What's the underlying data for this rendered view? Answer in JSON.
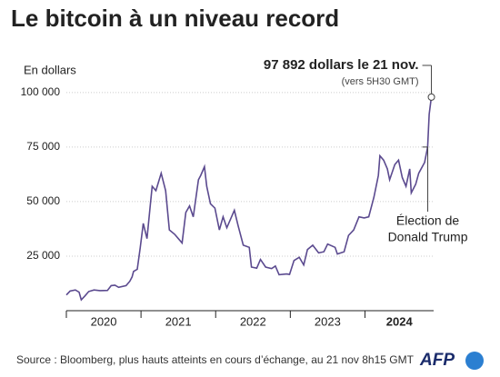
{
  "chart_data": {
    "type": "line",
    "title": "Le bitcoin à un niveau record",
    "y_label": "En  dollars",
    "x": [
      2020.0,
      2020.05,
      2020.12,
      2020.17,
      2020.2,
      2020.25,
      2020.3,
      2020.37,
      2020.45,
      2020.55,
      2020.6,
      2020.65,
      2020.7,
      2020.8,
      2020.85,
      2020.88,
      2020.9,
      2020.95,
      2020.99,
      2021.03,
      2021.08,
      2021.12,
      2021.15,
      2021.2,
      2021.27,
      2021.33,
      2021.38,
      2021.45,
      2021.5,
      2021.55,
      2021.6,
      2021.65,
      2021.7,
      2021.77,
      2021.8,
      2021.85,
      2021.88,
      2021.93,
      2021.99,
      2022.05,
      2022.1,
      2022.15,
      2022.25,
      2022.3,
      2022.37,
      2022.45,
      2022.48,
      2022.55,
      2022.6,
      2022.67,
      2022.75,
      2022.8,
      2022.85,
      2022.95,
      2022.99,
      2023.05,
      2023.12,
      2023.18,
      2023.23,
      2023.3,
      2023.38,
      2023.45,
      2023.5,
      2023.6,
      2023.63,
      2023.72,
      2023.78,
      2023.85,
      2023.92,
      2023.99,
      2024.05,
      2024.12,
      2024.18,
      2024.2,
      2024.25,
      2024.3,
      2024.33,
      2024.4,
      2024.45,
      2024.5,
      2024.55,
      2024.6,
      2024.62,
      2024.68,
      2024.72,
      2024.8,
      2024.84,
      2024.86,
      2024.89
    ],
    "series": [
      {
        "name": "Bitcoin",
        "color": "#5b4a8f",
        "values": [
          7200,
          9000,
          9500,
          8500,
          5000,
          6800,
          8800,
          9500,
          9200,
          9300,
          11500,
          11700,
          10700,
          11500,
          13500,
          15500,
          18000,
          19000,
          29000,
          40000,
          33000,
          47000,
          57000,
          55000,
          63000,
          55000,
          37000,
          35000,
          33000,
          31000,
          45000,
          48000,
          43000,
          60000,
          62000,
          66000,
          57000,
          49000,
          47000,
          37000,
          43000,
          38000,
          46000,
          39000,
          30000,
          29000,
          20000,
          19500,
          23500,
          20000,
          19300,
          20500,
          16500,
          16800,
          16600,
          23000,
          24500,
          21000,
          28000,
          30000,
          26500,
          27000,
          30500,
          29000,
          26000,
          27000,
          34500,
          37000,
          43000,
          42500,
          43000,
          52000,
          62000,
          71000,
          69000,
          65000,
          60000,
          67000,
          69000,
          61000,
          57000,
          65000,
          54000,
          58000,
          63000,
          68000,
          75000,
          90000,
          97892
        ]
      }
    ],
    "xlim": [
      2020,
      2024.92
    ],
    "xticks": [
      2020,
      2021,
      2022,
      2023,
      2024
    ],
    "ylim": [
      0,
      107000
    ],
    "yticks": [
      {
        "value": 25000,
        "label": "25 000"
      },
      {
        "value": 50000,
        "label": "50 000"
      },
      {
        "value": 75000,
        "label": "75 000"
      },
      {
        "value": 100000,
        "label": "100 000"
      }
    ],
    "annotations": {
      "record": "97 892 dollars le 21 nov.",
      "record_time": "(vers 5H30 GMT)",
      "election_1": "Élection de",
      "election_2": "Donald Trump"
    },
    "source": "Source : Bloomberg, plus hauts atteints en cours d’échange, au 21 nov 8h15 GMT",
    "logo": "AFP"
  }
}
